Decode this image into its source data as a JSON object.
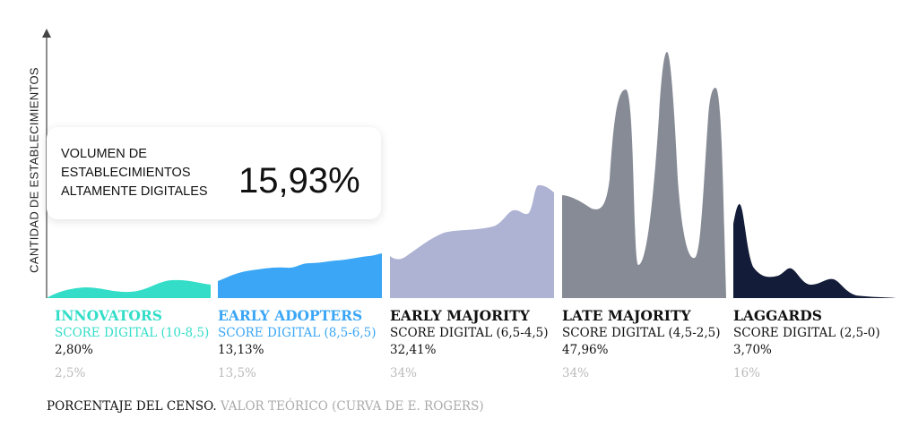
{
  "chart_data": {
    "type": "area",
    "title": "",
    "ylabel": "CANTIDAD DE ESTABLECIMIENTOS",
    "xlabel": "",
    "callout": {
      "label": "VOLUMEN DE\nESTABLECIMIENTOS\nALTAMENTE DIGITALES",
      "value": "15,93%"
    },
    "categories": [
      {
        "name": "INNOVATORS",
        "score": "SCORE DIGITAL (10-8,5)",
        "census_pct": "2,80%",
        "theoretical_pct": "2,5%",
        "color": "#33ddc8",
        "score_color": "#33ddc8"
      },
      {
        "name": "EARLY ADOPTERS",
        "score": "SCORE DIGITAL (8,5-6,5)",
        "census_pct": "13,13%",
        "theoretical_pct": "13,5%",
        "color": "#3aa6f5",
        "score_color": "#3aa6f5"
      },
      {
        "name": "EARLY MAJORITY",
        "score": "SCORE DIGITAL (6,5-4,5)",
        "census_pct": "32,41%",
        "theoretical_pct": "34%",
        "color": "#aeb2d3",
        "score_color": "#111111"
      },
      {
        "name": "LATE MAJORITY",
        "score": "SCORE DIGITAL (4,5-2,5)",
        "census_pct": "47,96%",
        "theoretical_pct": "34%",
        "color": "#868b96",
        "score_color": "#111111"
      },
      {
        "name": "LAGGARDS",
        "score": "SCORE DIGITAL (2,5-0)",
        "census_pct": "3,70%",
        "theoretical_pct": "16%",
        "color": "#131c38",
        "score_color": "#111111"
      }
    ],
    "values": [
      2.8,
      13.13,
      32.41,
      47.96,
      3.7
    ],
    "theoretical_values": [
      2.5,
      13.5,
      34,
      34,
      16
    ],
    "legend": {
      "census": "PORCENTAJE DEL CENSO.",
      "theoretical": "VALOR TEÓRICO (CURVA DE E. ROGERS)"
    }
  }
}
